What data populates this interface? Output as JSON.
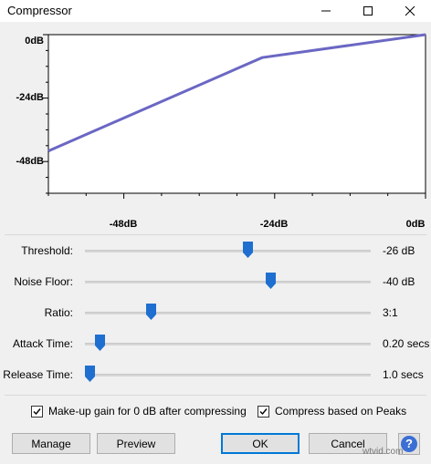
{
  "window": {
    "title": "Compressor",
    "controls": [
      "minimize-icon",
      "maximize-icon",
      "close-icon"
    ]
  },
  "graph": {
    "y_labels": [
      "0dB",
      "-24dB",
      "-48dB"
    ],
    "x_labels": [
      "-48dB",
      "-24dB",
      "0dB"
    ],
    "curve_color": "#6b67c4",
    "chart_data": {
      "type": "line",
      "title": "",
      "xlabel": "",
      "ylabel": "",
      "xlim": [
        -60,
        0
      ],
      "ylim": [
        -60,
        0
      ],
      "series": [
        {
          "x": [
            -60,
            -26,
            0
          ],
          "y": [
            -44,
            -8.7,
            0
          ]
        }
      ]
    }
  },
  "sliders": [
    {
      "label": "Threshold:",
      "value_text": "-26 dB",
      "fraction": 0.572
    },
    {
      "label": "Noise Floor:",
      "value_text": "-40 dB",
      "fraction": 0.656
    },
    {
      "label": "Ratio:",
      "value_text": "3:1",
      "fraction": 0.221
    },
    {
      "label": "Attack Time:",
      "value_text": "0.20 secs",
      "fraction": 0.036
    },
    {
      "label": "Release Time:",
      "value_text": "1.0 secs",
      "fraction": 0.0
    }
  ],
  "accent": "#1f6fd0",
  "checkboxes": [
    {
      "label": "Make-up gain for 0 dB after compressing",
      "checked": true
    },
    {
      "label": "Compress based on Peaks",
      "checked": true
    }
  ],
  "buttons": {
    "manage": "Manage",
    "preview": "Preview",
    "ok": "OK",
    "cancel": "Cancel",
    "help": "?"
  },
  "watermark": "wtvid.com"
}
